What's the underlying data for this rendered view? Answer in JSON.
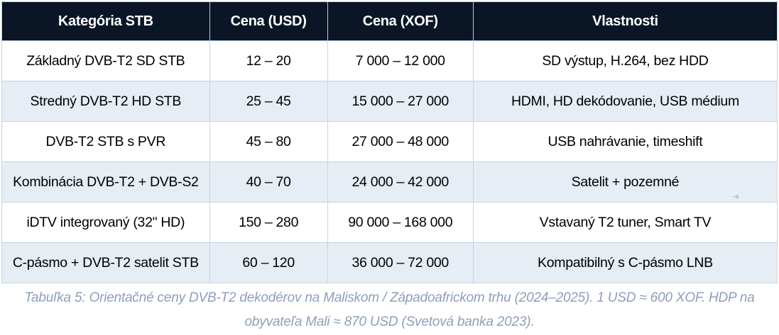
{
  "table": {
    "columns": [
      {
        "label": "Kategória STB"
      },
      {
        "label": "Cena (USD)"
      },
      {
        "label": "Cena (XOF)"
      },
      {
        "label": "Vlastnosti"
      }
    ],
    "rows": [
      [
        "Základný DVB-T2 SD STB",
        "12 – 20",
        "7 000 – 12 000",
        "SD výstup, H.264, bez HDD"
      ],
      [
        "Stredný DVB-T2 HD STB",
        "25 – 45",
        "15 000 – 27 000",
        "HDMI, HD dekódovanie, USB médium"
      ],
      [
        "DVB-T2 STB s PVR",
        "45 – 80",
        "27 000 – 48 000",
        "USB nahrávanie, timeshift"
      ],
      [
        "Kombinácia DVB-T2 + DVB-S2",
        "40 – 70",
        "24 000 – 42 000",
        "Satelit + pozemné"
      ],
      [
        "iDTV integrovaný (32\" HD)",
        "150 – 280",
        "90 000 – 168 000",
        "Vstavaný T2 tuner, Smart TV"
      ],
      [
        "C-pásmo + DVB-T2 satelit STB",
        "60 – 120",
        "36 000 – 72 000",
        "Kompatibilný s C-pásmo LNB"
      ]
    ]
  },
  "footnote_mark": "-o",
  "caption": {
    "line1": "Tabuľka 5: Orientačné ceny DVB-T2 dekodérov na Maliskom / Západoafrickom trhu (2024–2025). 1 USD ≈ 600 XOF. HDP na",
    "line2": "obyvateľa Mali ≈ 870 USD (Svetová banka 2023)."
  },
  "colors": {
    "header_bg": "#0a1526",
    "header_text": "#ffffff",
    "row_alt_bg": "#e7edf5",
    "row_bg": "#ffffff",
    "border_inner": "#c6d4e2",
    "border_outer": "#a4b9cf",
    "cell_text": "#000000",
    "caption_color": "#8c9fba"
  }
}
